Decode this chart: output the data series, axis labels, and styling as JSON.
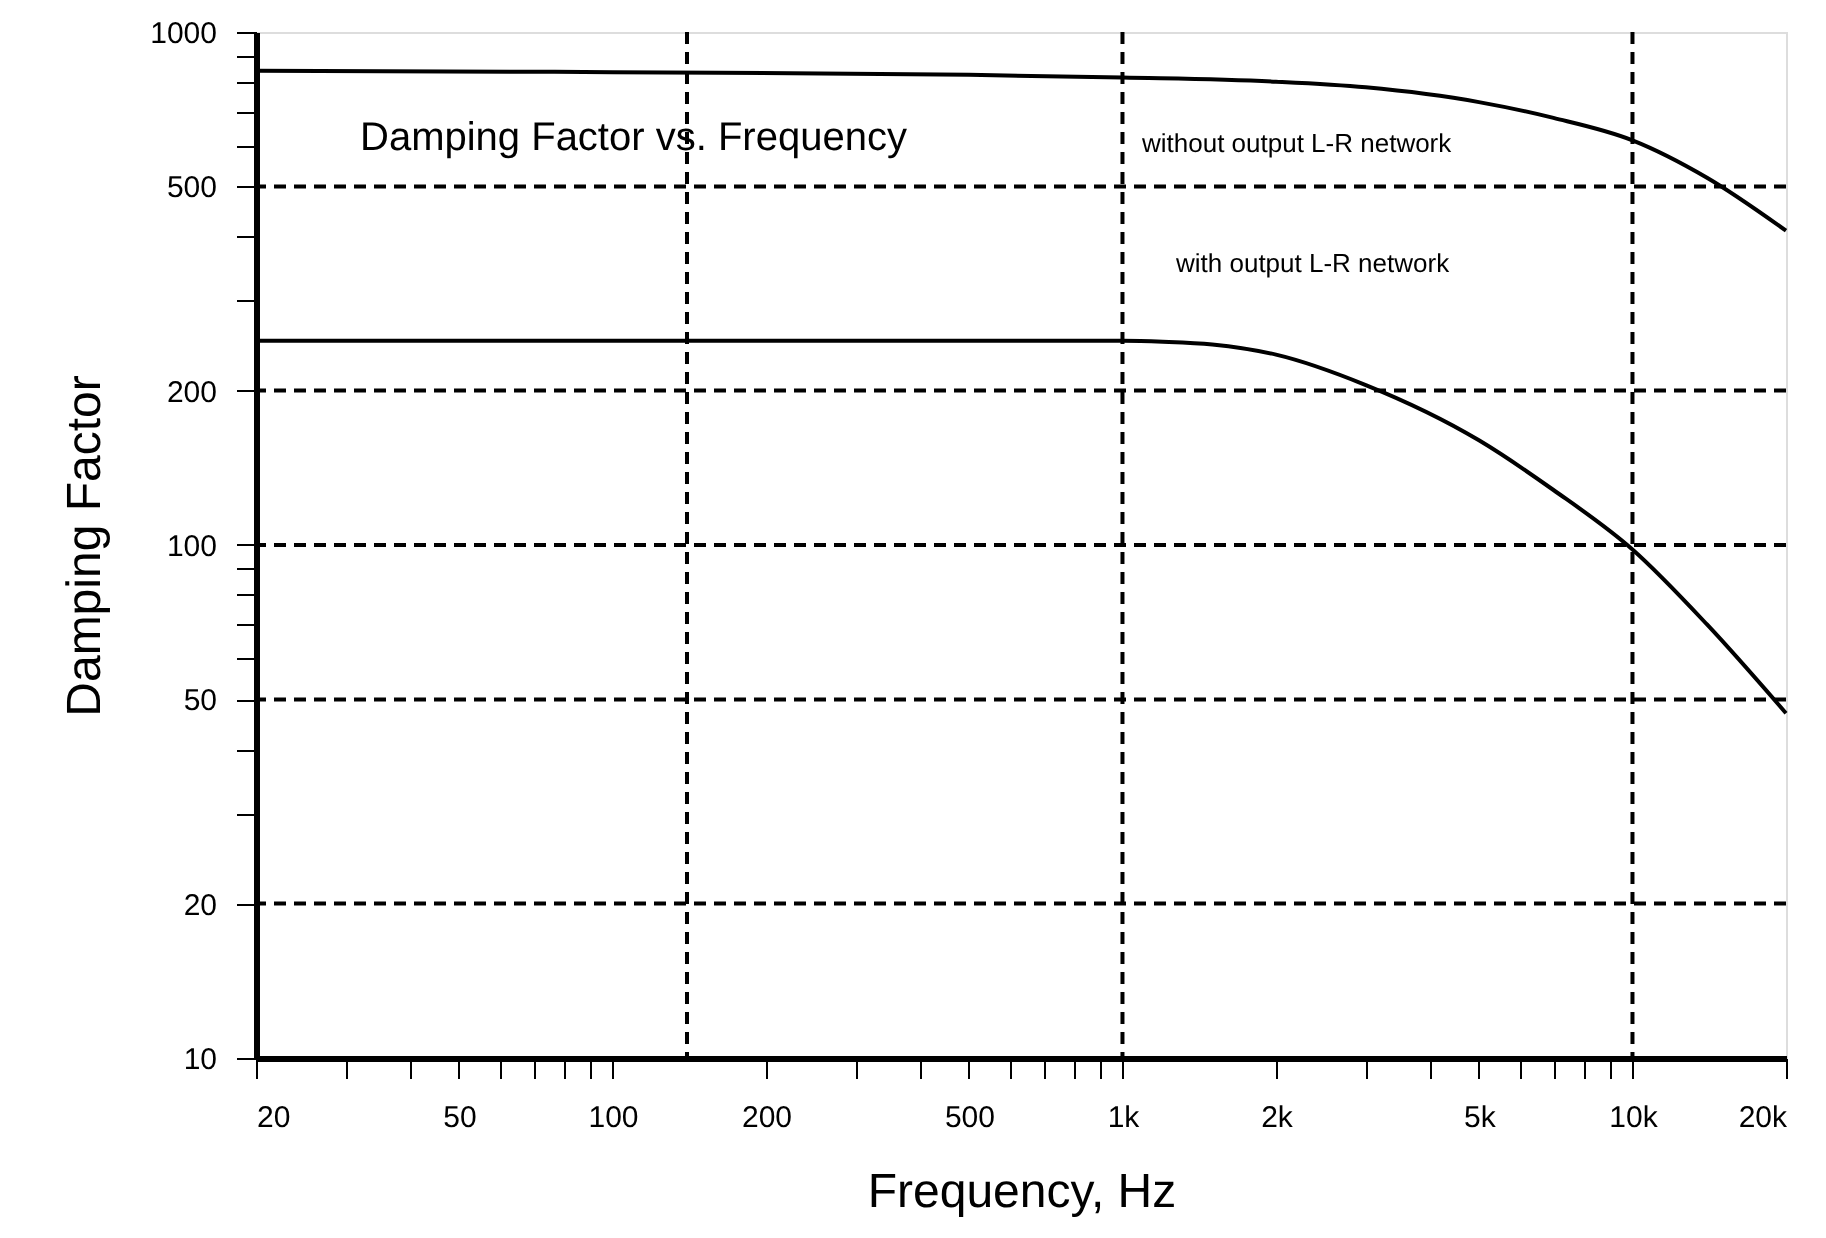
{
  "chart_data": {
    "type": "line",
    "title": "Damping Factor vs. Frequency",
    "xlabel": "Frequency, Hz",
    "ylabel": "Damping Factor",
    "log": "xy",
    "xlim": [
      20,
      20000
    ],
    "ylim": [
      10,
      1000
    ],
    "xticks": [
      20,
      {
        "value": 30,
        "label": null
      },
      {
        "value": 40,
        "label": null
      },
      50,
      {
        "value": 60,
        "label": null
      },
      {
        "value": 70,
        "label": null
      },
      {
        "value": 80,
        "label": null
      },
      {
        "value": 90,
        "label": null
      },
      100,
      200,
      {
        "value": 300,
        "label": null
      },
      {
        "value": 400,
        "label": null
      },
      500,
      {
        "value": 600,
        "label": null
      },
      {
        "value": 700,
        "label": null
      },
      {
        "value": 800,
        "label": null
      },
      {
        "value": 900,
        "label": null
      },
      {
        "value": 1000,
        "label": "1k"
      },
      {
        "value": 2000,
        "label": "2k"
      },
      {
        "value": 3000,
        "label": null
      },
      {
        "value": 4000,
        "label": null
      },
      {
        "value": 5000,
        "label": "5k"
      },
      {
        "value": 6000,
        "label": null
      },
      {
        "value": 7000,
        "label": null
      },
      {
        "value": 8000,
        "label": null
      },
      {
        "value": 9000,
        "label": null
      },
      {
        "value": 10000,
        "label": "10k"
      },
      {
        "value": 20000,
        "label": "20k"
      }
    ],
    "yticks": [
      10,
      20,
      {
        "value": 30,
        "label": null
      },
      {
        "value": 40,
        "label": null
      },
      50,
      {
        "value": 60,
        "label": null
      },
      {
        "value": 70,
        "label": null
      },
      {
        "value": 80,
        "label": null
      },
      {
        "value": 90,
        "label": null
      },
      100,
      200,
      {
        "value": 300,
        "label": null
      },
      {
        "value": 400,
        "label": null
      },
      500,
      {
        "value": 600,
        "label": null
      },
      {
        "value": 700,
        "label": null
      },
      {
        "value": 800,
        "label": null
      },
      {
        "value": 900,
        "label": null
      },
      1000
    ],
    "grid": false,
    "legend": false,
    "marker": "none",
    "line_style": "solid",
    "series": [
      {
        "color": "#000000",
        "x": [
          20,
          100,
          500,
          1000,
          2000,
          3000,
          5000,
          7000,
          10000,
          14000,
          20000
        ],
        "values": [
          840,
          835,
          825,
          815,
          800,
          780,
          730,
          680,
          615,
          520,
          410
        ]
      },
      {
        "color": "#000000",
        "x": [
          20,
          100,
          500,
          1000,
          1200,
          1500,
          2000,
          3000,
          5000,
          7000,
          10000,
          14000,
          20000
        ],
        "values": [
          250,
          250,
          250,
          250,
          249,
          246,
          235,
          205,
          160,
          128,
          98,
          70,
          47
        ]
      }
    ],
    "annotations": [
      "without output L-R network",
      "with output L-R network"
    ],
    "ref_lines": [
      {
        "axis": "x",
        "value": 140,
        "line_style": "dashed",
        "color": "#000000"
      },
      {
        "axis": "x",
        "value": 1000,
        "line_style": "dashed",
        "color": "#000000"
      },
      {
        "axis": "x",
        "value": 10000,
        "line_style": "dashed",
        "color": "#000000"
      },
      {
        "axis": "y",
        "value": 20,
        "line_style": "dashed",
        "color": "#000000"
      },
      {
        "axis": "y",
        "value": 50,
        "line_style": "dashed",
        "color": "#000000"
      },
      {
        "axis": "y",
        "value": 100,
        "line_style": "dashed",
        "color": "#000000"
      },
      {
        "axis": "y",
        "value": 200,
        "line_style": "dashed",
        "color": "#000000"
      },
      {
        "axis": "y",
        "value": 500,
        "line_style": "dashed",
        "color": "#000000"
      }
    ]
  }
}
